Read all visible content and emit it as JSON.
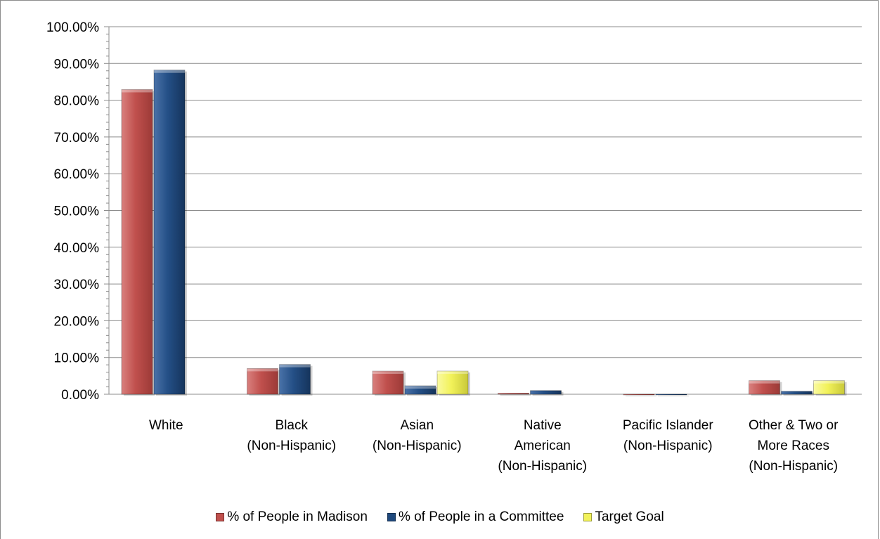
{
  "chart_data": {
    "type": "bar",
    "categories": [
      [
        "White"
      ],
      [
        "Black",
        "(Non-Hispanic)"
      ],
      [
        "Asian",
        "(Non-Hispanic)"
      ],
      [
        "Native",
        "American",
        "(Non-Hispanic)"
      ],
      [
        "Pacific Islander",
        "(Non-Hispanic)"
      ],
      [
        "Other & Two or",
        "More Races",
        "(Non-Hispanic)"
      ]
    ],
    "series": [
      {
        "name": "% of People in Madison",
        "color": "#c0504d",
        "values": [
          82.9,
          7.0,
          6.3,
          0.3,
          0.0,
          3.7
        ]
      },
      {
        "name": "% of People in a Committee",
        "color": "#1f497d",
        "values": [
          88.2,
          8.1,
          2.3,
          1.0,
          0.0,
          0.8
        ]
      },
      {
        "name": "Target Goal",
        "color": "#f2f25a",
        "values": [
          null,
          null,
          6.3,
          null,
          null,
          3.7
        ]
      }
    ],
    "yticks": [
      "0.00%",
      "10.00%",
      "20.00%",
      "30.00%",
      "40.00%",
      "50.00%",
      "60.00%",
      "70.00%",
      "80.00%",
      "90.00%",
      "100.00%"
    ],
    "ylim": [
      0,
      100
    ],
    "grid": true,
    "legend": "bottom",
    "title": "",
    "xlabel": "",
    "ylabel": ""
  }
}
